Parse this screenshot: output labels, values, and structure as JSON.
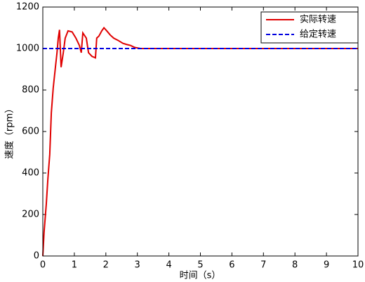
{
  "chart_data": {
    "type": "line",
    "xlabel": "时间（s）",
    "ylabel": "速度（rpm）",
    "xlim": [
      0,
      10
    ],
    "xticks": [
      0,
      1,
      2,
      3,
      4,
      5,
      6,
      7,
      8,
      9,
      10
    ],
    "ylim": [
      0,
      1200
    ],
    "yticks": [
      0,
      200,
      400,
      600,
      800,
      1000,
      1200
    ],
    "grid": false,
    "legend": "upper right",
    "series": [
      {
        "name": "实际转速",
        "color": "#e00000",
        "linestyle": "solid",
        "x": [
          0,
          0.04,
          0.11,
          0.16,
          0.22,
          0.27,
          0.33,
          0.4,
          0.45,
          0.49,
          0.53,
          0.58,
          0.65,
          0.71,
          0.8,
          0.93,
          1.05,
          1.16,
          1.22,
          1.27,
          1.38,
          1.45,
          1.56,
          1.67,
          1.71,
          1.78,
          1.87,
          1.94,
          2.03,
          2.14,
          2.25,
          2.38,
          2.54,
          2.65,
          2.78,
          2.92,
          3.1,
          10
        ],
        "values": [
          0,
          115,
          250,
          370,
          490,
          690,
          810,
          910,
          980,
          1050,
          1090,
          910,
          980,
          1050,
          1085,
          1080,
          1050,
          1015,
          980,
          1075,
          1050,
          980,
          962,
          955,
          1050,
          1060,
          1085,
          1100,
          1085,
          1065,
          1050,
          1040,
          1025,
          1020,
          1015,
          1005,
          1000,
          1000
        ]
      },
      {
        "name": "给定转速",
        "color": "#0000e0",
        "linestyle": "dashed",
        "x": [
          0,
          10
        ],
        "values": [
          1000,
          1000
        ]
      }
    ]
  }
}
